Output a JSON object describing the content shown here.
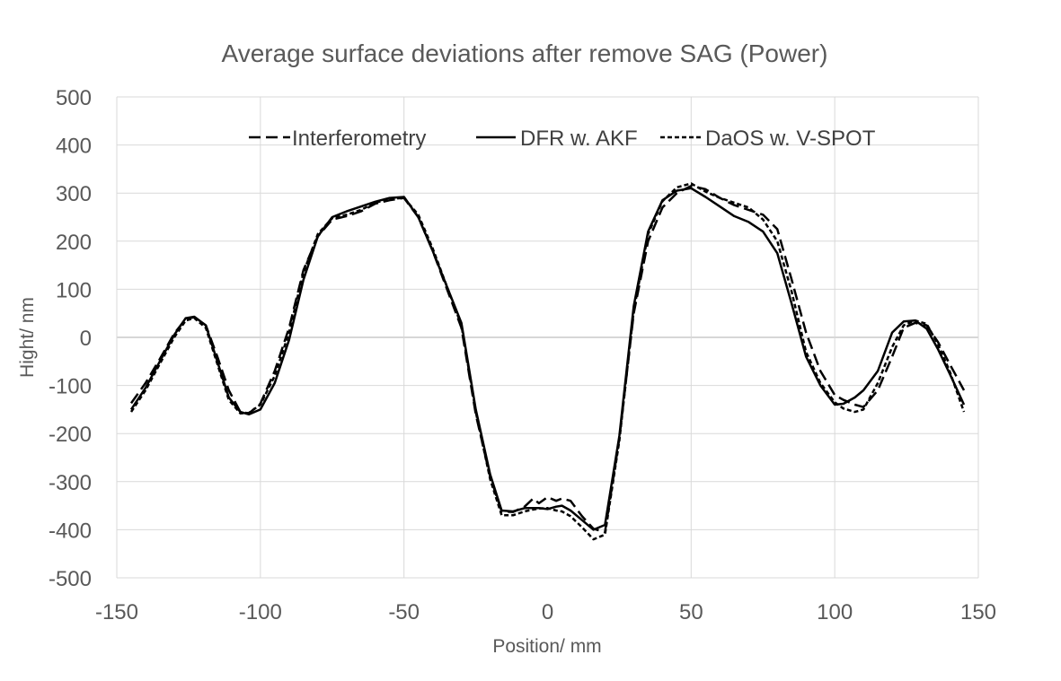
{
  "chart_data": {
    "type": "line",
    "title": "Average surface deviations after remove SAG (Power)",
    "xlabel": "Position/ mm",
    "ylabel": "Hight/ nm",
    "xlim": [
      -150,
      150
    ],
    "ylim": [
      -500,
      500
    ],
    "xticks": [
      -150,
      -100,
      -50,
      0,
      50,
      100,
      150
    ],
    "yticks": [
      500,
      400,
      300,
      200,
      100,
      0,
      -100,
      -200,
      -300,
      -400,
      -500
    ],
    "grid": true,
    "legend_position": "top",
    "series": [
      {
        "name": "Interferometry",
        "style": "dashed",
        "x": [
          -145,
          -140,
          -135,
          -130,
          -126,
          -123,
          -119,
          -115,
          -111,
          -107,
          -104,
          -100,
          -95,
          -90,
          -85,
          -80,
          -75,
          -70,
          -65,
          -60,
          -55,
          -50,
          -45,
          -40,
          -35,
          -30,
          -25,
          -20,
          -16,
          -12,
          -8,
          -5,
          -3,
          0,
          3,
          5,
          8,
          12,
          16,
          20,
          25,
          30,
          35,
          40,
          45,
          50,
          55,
          60,
          65,
          70,
          75,
          80,
          85,
          90,
          95,
          100,
          103,
          107,
          110,
          115,
          120,
          124,
          128,
          132,
          136,
          140,
          145
        ],
        "y": [
          -137,
          -95,
          -45,
          8,
          38,
          42,
          25,
          -40,
          -110,
          -155,
          -158,
          -138,
          -70,
          20,
          140,
          210,
          245,
          252,
          262,
          278,
          285,
          290,
          250,
          180,
          100,
          20,
          -160,
          -290,
          -362,
          -363,
          -352,
          -335,
          -345,
          -332,
          -340,
          -335,
          -340,
          -372,
          -398,
          -405,
          -210,
          50,
          200,
          270,
          300,
          315,
          308,
          290,
          275,
          265,
          255,
          225,
          120,
          10,
          -70,
          -120,
          -130,
          -140,
          -145,
          -110,
          -40,
          20,
          30,
          25,
          -10,
          -55,
          -110
        ]
      },
      {
        "name": "DFR w. AKF",
        "style": "solid",
        "x": [
          -145,
          -140,
          -135,
          -130,
          -126,
          -123,
          -119,
          -115,
          -111,
          -107,
          -104,
          -100,
          -95,
          -90,
          -85,
          -80,
          -75,
          -70,
          -65,
          -60,
          -55,
          -50,
          -45,
          -40,
          -35,
          -30,
          -25,
          -20,
          -16,
          -12,
          -8,
          -5,
          -3,
          0,
          3,
          5,
          8,
          12,
          16,
          20,
          25,
          30,
          35,
          40,
          45,
          50,
          55,
          60,
          65,
          70,
          75,
          80,
          85,
          90,
          95,
          100,
          103,
          107,
          110,
          115,
          120,
          124,
          128,
          132,
          136,
          140,
          145
        ],
        "y": [
          -150,
          -105,
          -50,
          5,
          40,
          43,
          25,
          -50,
          -125,
          -155,
          -160,
          -150,
          -95,
          -5,
          120,
          210,
          250,
          262,
          272,
          282,
          290,
          292,
          250,
          180,
          105,
          30,
          -150,
          -285,
          -360,
          -362,
          -355,
          -355,
          -355,
          -357,
          -352,
          -350,
          -360,
          -380,
          -400,
          -390,
          -205,
          65,
          220,
          285,
          305,
          310,
          292,
          272,
          252,
          240,
          220,
          175,
          70,
          -40,
          -100,
          -140,
          -138,
          -125,
          -110,
          -70,
          10,
          33,
          35,
          18,
          -25,
          -75,
          -140
        ]
      },
      {
        "name": "DaOS w. V-SPOT",
        "style": "dotted",
        "x": [
          -145,
          -140,
          -135,
          -130,
          -126,
          -123,
          -119,
          -115,
          -111,
          -107,
          -104,
          -100,
          -95,
          -90,
          -85,
          -80,
          -75,
          -70,
          -65,
          -60,
          -55,
          -50,
          -45,
          -40,
          -35,
          -30,
          -25,
          -20,
          -16,
          -12,
          -8,
          -5,
          -3,
          0,
          3,
          5,
          8,
          12,
          16,
          20,
          25,
          30,
          35,
          40,
          45,
          50,
          55,
          60,
          65,
          70,
          75,
          80,
          85,
          90,
          95,
          100,
          103,
          107,
          110,
          115,
          120,
          124,
          128,
          132,
          136,
          140,
          145
        ],
        "y": [
          -155,
          -110,
          -55,
          0,
          35,
          40,
          20,
          -55,
          -130,
          -158,
          -157,
          -140,
          -80,
          10,
          135,
          215,
          248,
          255,
          265,
          280,
          288,
          290,
          255,
          185,
          105,
          25,
          -155,
          -295,
          -370,
          -370,
          -362,
          -358,
          -356,
          -355,
          -360,
          -362,
          -372,
          -395,
          -420,
          -410,
          -215,
          55,
          215,
          283,
          312,
          320,
          303,
          290,
          280,
          270,
          245,
          200,
          95,
          -30,
          -95,
          -135,
          -148,
          -155,
          -150,
          -95,
          -20,
          25,
          35,
          28,
          -15,
          -70,
          -155
        ]
      }
    ]
  }
}
